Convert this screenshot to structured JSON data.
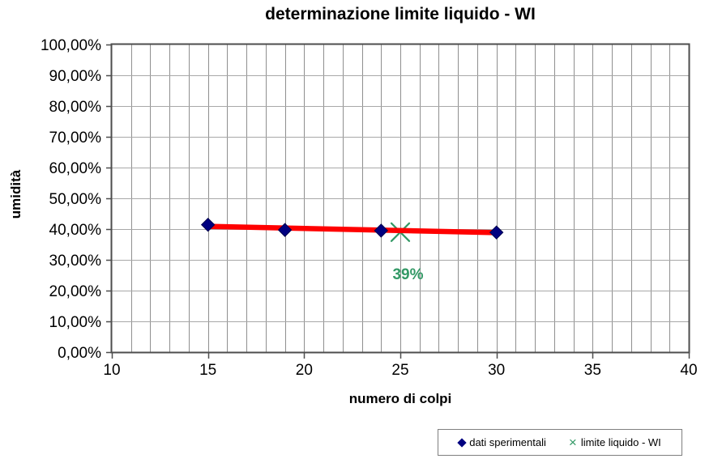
{
  "chart_data": {
    "type": "scatter",
    "title": "determinazione limite liquido - WI",
    "xlabel": "numero di colpi",
    "ylabel": "umidità",
    "xlim": [
      10,
      40
    ],
    "ylim": [
      0,
      100
    ],
    "grid": true,
    "x_minor_step": 1,
    "x_ticks": [
      {
        "v": 10,
        "label": "10"
      },
      {
        "v": 15,
        "label": "15"
      },
      {
        "v": 20,
        "label": "20"
      },
      {
        "v": 25,
        "label": "25"
      },
      {
        "v": 30,
        "label": "30"
      },
      {
        "v": 35,
        "label": "35"
      },
      {
        "v": 40,
        "label": "40"
      }
    ],
    "y_ticks": [
      {
        "v": 0,
        "label": "0,00%"
      },
      {
        "v": 10,
        "label": "10,00%"
      },
      {
        "v": 20,
        "label": "20,00%"
      },
      {
        "v": 30,
        "label": "30,00%"
      },
      {
        "v": 40,
        "label": "40,00%"
      },
      {
        "v": 50,
        "label": "50,00%"
      },
      {
        "v": 60,
        "label": "60,00%"
      },
      {
        "v": 70,
        "label": "70,00%"
      },
      {
        "v": 80,
        "label": "80,00%"
      },
      {
        "v": 90,
        "label": "90,00%"
      },
      {
        "v": 100,
        "label": "100,00%"
      }
    ],
    "series": [
      {
        "name": "dati sperimentali",
        "marker": "diamond",
        "color": "#000080",
        "points": [
          [
            15,
            41.4
          ],
          [
            19,
            39.7
          ],
          [
            24,
            39.5
          ],
          [
            30,
            38.9
          ]
        ]
      },
      {
        "name": "limite liquido - WI",
        "marker": "x",
        "color": "#339966",
        "points": [
          [
            25,
            39.0
          ]
        ]
      }
    ],
    "trendline": {
      "color": "#ff0000",
      "width": 6.5,
      "points": [
        [
          15,
          40.9
        ],
        [
          30.2,
          38.8
        ]
      ]
    },
    "annotation": {
      "text": "39%",
      "x": 25.4,
      "y": 25.5,
      "color": "#339966"
    },
    "legend_position": "bottom-right"
  },
  "colors": {
    "axis": "#4d4d4d",
    "grid_vertical": "#8f8f8f",
    "grid_horizontal": "#a8a8a8",
    "tick_label": "#000000",
    "legend_border": "#7f7f7f"
  }
}
